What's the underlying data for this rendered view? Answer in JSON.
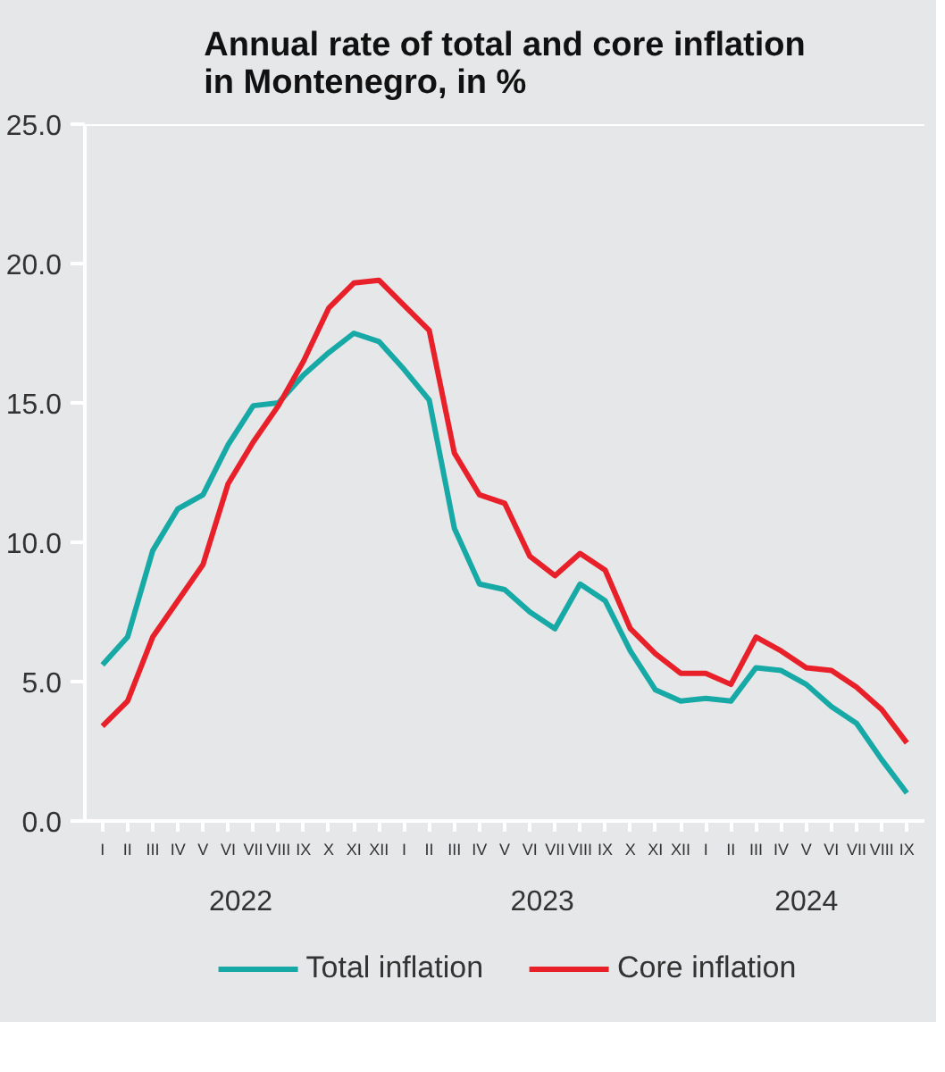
{
  "chart_data": {
    "type": "line",
    "title": "Annual rate of total and core inflation\nin Montenegro, in %",
    "categories": [
      "I",
      "II",
      "III",
      "IV",
      "V",
      "VI",
      "VII",
      "VIII",
      "IX",
      "X",
      "XI",
      "XII",
      "I",
      "II",
      "III",
      "IV",
      "V",
      "VI",
      "VII",
      "VIII",
      "IX",
      "X",
      "XI",
      "XII",
      "I",
      "II",
      "III",
      "IV",
      "V",
      "VI",
      "VII",
      "VIII",
      "IX"
    ],
    "annotations": [
      "2022",
      "2023",
      "2024"
    ],
    "series": [
      {
        "name": "Total inflation",
        "color": "#17a9a6",
        "values": [
          5.6,
          6.6,
          9.7,
          11.2,
          11.7,
          13.5,
          14.9,
          15.0,
          16.0,
          16.8,
          17.5,
          17.2,
          16.2,
          15.1,
          10.5,
          8.5,
          8.3,
          7.5,
          6.9,
          8.5,
          7.9,
          6.1,
          4.7,
          4.3,
          4.4,
          4.3,
          5.5,
          5.4,
          4.9,
          4.1,
          3.5,
          2.2,
          1.0
        ]
      },
      {
        "name": "Core inflation",
        "color": "#e8202a",
        "values": [
          3.4,
          4.3,
          6.6,
          7.9,
          9.2,
          12.1,
          13.6,
          14.9,
          16.5,
          18.4,
          19.3,
          19.4,
          18.5,
          17.6,
          13.2,
          11.7,
          11.4,
          9.5,
          8.8,
          9.6,
          9.0,
          6.9,
          6.0,
          5.3,
          5.3,
          4.9,
          6.6,
          6.1,
          5.5,
          5.4,
          4.8,
          4.0,
          2.8
        ]
      }
    ],
    "ylim": [
      0,
      25
    ],
    "yticks": [
      {
        "value": 0,
        "label": "0.0"
      },
      {
        "value": 5,
        "label": "5.0"
      },
      {
        "value": 10,
        "label": "10.0"
      },
      {
        "value": 15,
        "label": "15.0"
      },
      {
        "value": 20,
        "label": "20.0"
      },
      {
        "value": 25,
        "label": "25.0"
      }
    ],
    "grid": false,
    "legend": "bottom"
  }
}
